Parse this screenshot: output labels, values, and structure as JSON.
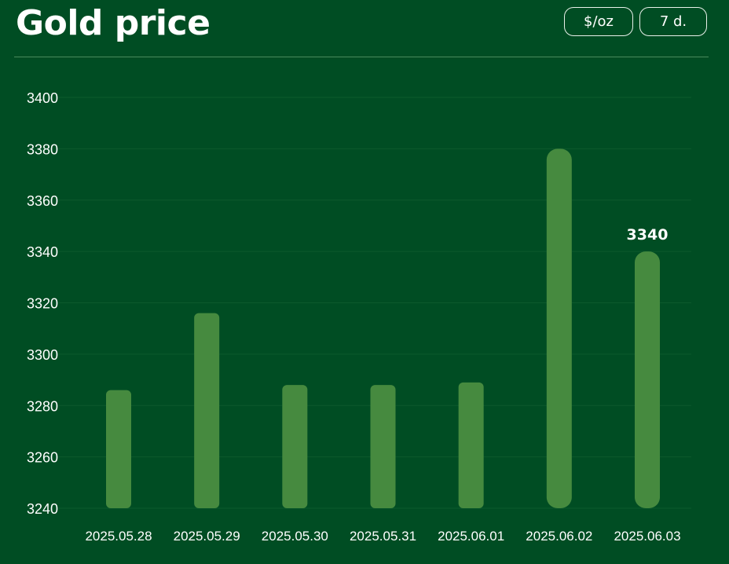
{
  "header": {
    "title": "Gold price",
    "unit_button": "$/oz",
    "range_button": "7 d."
  },
  "colors": {
    "background": "#004d23",
    "bar": "#468a3f",
    "gridline": "#0d5a2c"
  },
  "chart_data": {
    "type": "bar",
    "title": "Gold price",
    "xlabel": "",
    "ylabel": "",
    "categories": [
      "2025.05.28",
      "2025.05.29",
      "2025.05.30",
      "2025.05.31",
      "2025.06.01",
      "2025.06.02",
      "2025.06.03"
    ],
    "values": [
      3286,
      3316,
      3288,
      3288,
      3289,
      3380,
      3340
    ],
    "ylim": [
      3240,
      3400
    ],
    "yticks": [
      3240,
      3260,
      3280,
      3300,
      3320,
      3340,
      3360,
      3380,
      3400
    ],
    "data_labels": [
      {
        "index": 6,
        "text": "3340"
      }
    ],
    "grid": true,
    "legend": "none"
  }
}
